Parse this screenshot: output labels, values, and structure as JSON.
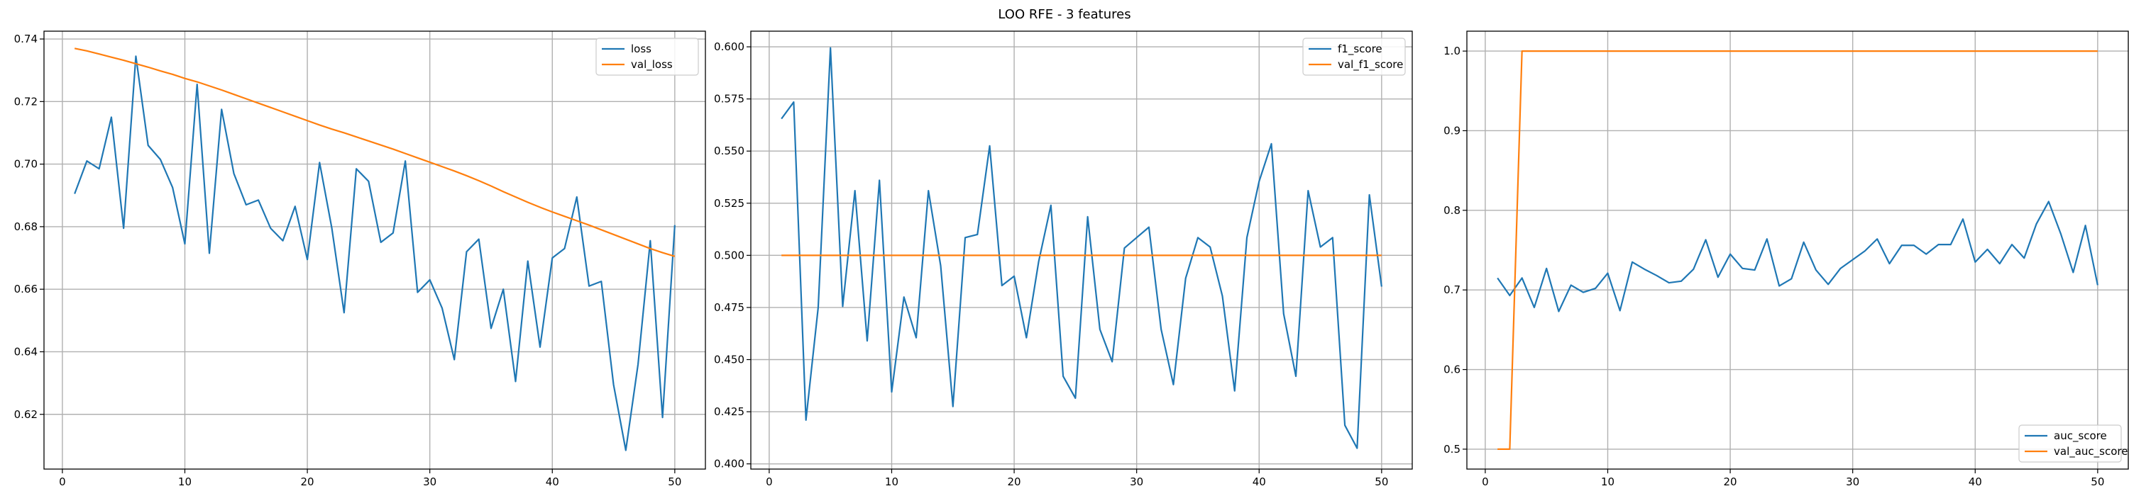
{
  "figure": {
    "suptitle": "LOO RFE - 3 features"
  },
  "colors": {
    "blue": "#1f77b4",
    "orange": "#ff7f0e",
    "grid": "#b0b0b0"
  },
  "chart_data": [
    {
      "type": "line",
      "title": "",
      "xlabel": "",
      "ylabel": "",
      "xlim": [
        -1.5,
        52.5
      ],
      "ylim": [
        0.6025,
        0.7425
      ],
      "xticks": [
        0,
        10,
        20,
        30,
        40,
        50
      ],
      "yticks": [
        0.62,
        0.64,
        0.66,
        0.68,
        0.7,
        0.72,
        0.74
      ],
      "yformat": 2,
      "grid": true,
      "legend": "upper right",
      "x": [
        1,
        2,
        3,
        4,
        5,
        6,
        7,
        8,
        9,
        10,
        11,
        12,
        13,
        14,
        15,
        16,
        17,
        18,
        19,
        20,
        21,
        22,
        23,
        24,
        25,
        26,
        27,
        28,
        29,
        30,
        31,
        32,
        33,
        34,
        35,
        36,
        37,
        38,
        39,
        40,
        41,
        42,
        43,
        44,
        45,
        46,
        47,
        48,
        49,
        50
      ],
      "series": [
        {
          "name": "loss",
          "color": "#1f77b4",
          "values": [
            0.6905,
            0.701,
            0.6985,
            0.715,
            0.6795,
            0.7345,
            0.706,
            0.7015,
            0.6925,
            0.6745,
            0.7255,
            0.6715,
            0.7175,
            0.697,
            0.687,
            0.6885,
            0.6795,
            0.6755,
            0.6865,
            0.6695,
            0.7005,
            0.6795,
            0.6525,
            0.6985,
            0.6945,
            0.675,
            0.678,
            0.701,
            0.659,
            0.663,
            0.654,
            0.6375,
            0.672,
            0.676,
            0.6475,
            0.66,
            0.6305,
            0.669,
            0.6415,
            0.67,
            0.673,
            0.6895,
            0.661,
            0.6625,
            0.6295,
            0.6085,
            0.636,
            0.6755,
            0.619,
            0.6805
          ]
        },
        {
          "name": "val_loss",
          "color": "#ff7f0e",
          "values": [
            0.737,
            0.7362,
            0.7352,
            0.7342,
            0.7332,
            0.7321,
            0.731,
            0.7298,
            0.7287,
            0.7274,
            0.7263,
            0.725,
            0.7237,
            0.7223,
            0.7209,
            0.7195,
            0.7181,
            0.7167,
            0.7153,
            0.7139,
            0.7125,
            0.7112,
            0.71,
            0.7087,
            0.7074,
            0.7061,
            0.7048,
            0.7034,
            0.702,
            0.7006,
            0.6992,
            0.6978,
            0.6963,
            0.6947,
            0.693,
            0.6912,
            0.6895,
            0.6878,
            0.6862,
            0.6847,
            0.6833,
            0.6819,
            0.6805,
            0.679,
            0.6775,
            0.676,
            0.6745,
            0.673,
            0.6717,
            0.6705
          ]
        }
      ]
    },
    {
      "type": "line",
      "title": "",
      "xlabel": "",
      "ylabel": "",
      "xlim": [
        -1.5,
        52.5
      ],
      "ylim": [
        0.3975,
        0.6075
      ],
      "xticks": [
        0,
        10,
        20,
        30,
        40,
        50
      ],
      "yticks": [
        0.4,
        0.425,
        0.45,
        0.475,
        0.5,
        0.525,
        0.55,
        0.575,
        0.6
      ],
      "yformat": 3,
      "grid": true,
      "legend": "upper right",
      "x": [
        1,
        2,
        3,
        4,
        5,
        6,
        7,
        8,
        9,
        10,
        11,
        12,
        13,
        14,
        15,
        16,
        17,
        18,
        19,
        20,
        21,
        22,
        23,
        24,
        25,
        26,
        27,
        28,
        29,
        30,
        31,
        32,
        33,
        34,
        35,
        36,
        37,
        38,
        39,
        40,
        41,
        42,
        43,
        44,
        45,
        46,
        47,
        48,
        49,
        50
      ],
      "series": [
        {
          "name": "f1_score",
          "color": "#1f77b4",
          "values": [
            0.5655,
            0.5735,
            0.421,
            0.475,
            0.5995,
            0.4755,
            0.531,
            0.459,
            0.536,
            0.4345,
            0.48,
            0.4605,
            0.531,
            0.495,
            0.4275,
            0.5085,
            0.51,
            0.5525,
            0.4855,
            0.49,
            0.4605,
            0.497,
            0.524,
            0.442,
            0.4315,
            0.5185,
            0.4645,
            0.449,
            0.5035,
            0.5085,
            0.5135,
            0.4645,
            0.438,
            0.489,
            0.5085,
            0.504,
            0.4805,
            0.435,
            0.5085,
            0.5355,
            0.5535,
            0.472,
            0.442,
            0.531,
            0.504,
            0.5085,
            0.4185,
            0.4075,
            0.529,
            0.485
          ]
        },
        {
          "name": "val_f1_score",
          "color": "#ff7f0e",
          "values": [
            0.5,
            0.5,
            0.5,
            0.5,
            0.5,
            0.5,
            0.5,
            0.5,
            0.5,
            0.5,
            0.5,
            0.5,
            0.5,
            0.5,
            0.5,
            0.5,
            0.5,
            0.5,
            0.5,
            0.5,
            0.5,
            0.5,
            0.5,
            0.5,
            0.5,
            0.5,
            0.5,
            0.5,
            0.5,
            0.5,
            0.5,
            0.5,
            0.5,
            0.5,
            0.5,
            0.5,
            0.5,
            0.5,
            0.5,
            0.5,
            0.5,
            0.5,
            0.5,
            0.5,
            0.5,
            0.5,
            0.5,
            0.5,
            0.5,
            0.5
          ]
        }
      ]
    },
    {
      "type": "line",
      "title": "",
      "xlabel": "",
      "ylabel": "",
      "xlim": [
        -1.5,
        52.5
      ],
      "ylim": [
        0.475,
        1.025
      ],
      "xticks": [
        0,
        10,
        20,
        30,
        40,
        50
      ],
      "yticks": [
        0.5,
        0.6,
        0.7,
        0.8,
        0.9,
        1.0
      ],
      "yformat": 1,
      "grid": true,
      "legend": "lower right",
      "x": [
        1,
        2,
        3,
        4,
        5,
        6,
        7,
        8,
        9,
        10,
        11,
        12,
        13,
        14,
        15,
        16,
        17,
        18,
        19,
        20,
        21,
        22,
        23,
        24,
        25,
        26,
        27,
        28,
        29,
        30,
        31,
        32,
        33,
        34,
        35,
        36,
        37,
        38,
        39,
        40,
        41,
        42,
        43,
        44,
        45,
        46,
        47,
        48,
        49,
        50
      ],
      "series": [
        {
          "name": "auc_score",
          "color": "#1f77b4",
          "values": [
            0.715,
            0.693,
            0.715,
            0.678,
            0.727,
            0.673,
            0.706,
            0.697,
            0.702,
            0.721,
            0.674,
            0.735,
            0.726,
            0.718,
            0.709,
            0.711,
            0.726,
            0.763,
            0.716,
            0.745,
            0.727,
            0.725,
            0.764,
            0.705,
            0.714,
            0.76,
            0.725,
            0.707,
            0.727,
            0.738,
            0.749,
            0.764,
            0.733,
            0.756,
            0.756,
            0.745,
            0.757,
            0.757,
            0.789,
            0.735,
            0.751,
            0.733,
            0.757,
            0.74,
            0.783,
            0.811,
            0.77,
            0.722,
            0.781,
            0.706
          ]
        },
        {
          "name": "val_auc_score",
          "color": "#ff7f0e",
          "values": [
            0.5,
            0.5,
            1.0,
            1.0,
            1.0,
            1.0,
            1.0,
            1.0,
            1.0,
            1.0,
            1.0,
            1.0,
            1.0,
            1.0,
            1.0,
            1.0,
            1.0,
            1.0,
            1.0,
            1.0,
            1.0,
            1.0,
            1.0,
            1.0,
            1.0,
            1.0,
            1.0,
            1.0,
            1.0,
            1.0,
            1.0,
            1.0,
            1.0,
            1.0,
            1.0,
            1.0,
            1.0,
            1.0,
            1.0,
            1.0,
            1.0,
            1.0,
            1.0,
            1.0,
            1.0,
            1.0,
            1.0,
            1.0,
            1.0,
            1.0
          ]
        }
      ]
    }
  ]
}
